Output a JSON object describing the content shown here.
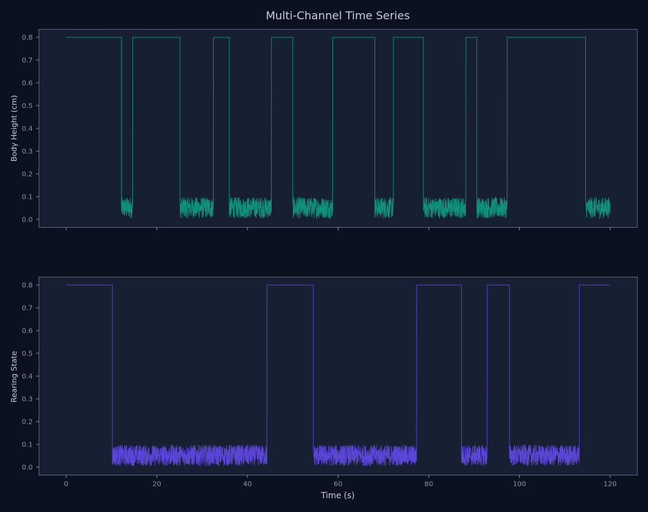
{
  "chart_data": {
    "type": "line",
    "title": "Multi-Channel Time Series",
    "xlabel": "Time (s)",
    "xlim": [
      -6,
      126
    ],
    "xticks": [
      0,
      20,
      40,
      60,
      80,
      100,
      120
    ],
    "yticks": [
      0.0,
      0.1,
      0.2,
      0.3,
      0.4,
      0.5,
      0.6,
      0.7,
      0.8
    ],
    "ylim": [
      -0.035,
      0.835
    ],
    "grid": false,
    "panels": [
      {
        "ylabel": "Body Height (cm)",
        "color": "#10907a",
        "high_value": 0.8,
        "low_band": [
          0.005,
          0.098
        ],
        "high_intervals": [
          [
            0,
            12.2
          ],
          [
            14.7,
            25.1
          ],
          [
            32.5,
            36.0
          ],
          [
            45.3,
            50.0
          ],
          [
            58.8,
            68.1
          ],
          [
            72.2,
            78.8
          ],
          [
            88.2,
            90.6
          ],
          [
            97.3,
            114.6
          ]
        ],
        "low_intervals": [
          [
            12.2,
            14.7
          ],
          [
            25.1,
            32.5
          ],
          [
            36.0,
            45.3
          ],
          [
            50.0,
            58.8
          ],
          [
            68.1,
            72.2
          ],
          [
            78.8,
            88.2
          ],
          [
            90.6,
            97.3
          ],
          [
            114.6,
            120.0
          ]
        ]
      },
      {
        "ylabel": "Rearing State",
        "color": "#5b45d6",
        "high_value": 0.8,
        "low_band": [
          0.005,
          0.098
        ],
        "high_intervals": [
          [
            0,
            10.2
          ],
          [
            44.3,
            54.5
          ],
          [
            77.3,
            87.2
          ],
          [
            92.9,
            97.8
          ],
          [
            113.2,
            120.0
          ]
        ],
        "low_intervals": [
          [
            10.2,
            44.3
          ],
          [
            54.5,
            77.3
          ],
          [
            87.2,
            92.9
          ],
          [
            97.8,
            113.2
          ]
        ]
      }
    ]
  }
}
